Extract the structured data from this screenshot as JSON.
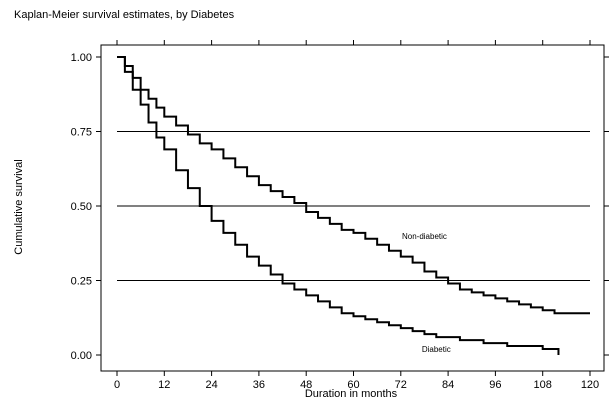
{
  "chart_data": {
    "type": "line",
    "title": "Kaplan-Meier survival estimates, by Diabetes",
    "xlabel": "Duration in months",
    "ylabel": "Cumulative survival",
    "xlim": [
      0,
      120
    ],
    "ylim": [
      0,
      1
    ],
    "x_ticks": [
      0,
      12,
      24,
      36,
      48,
      60,
      72,
      84,
      96,
      108,
      120
    ],
    "y_ticks": [
      "1.00",
      "0.75",
      "0.50",
      "0.25",
      "0.00"
    ],
    "y_tick_values": [
      1.0,
      0.75,
      0.5,
      0.25,
      0.0
    ],
    "grid": {
      "horizontal_lines_at": [
        0.25,
        0.5,
        0.75
      ]
    },
    "series": [
      {
        "name": "Non-diabetic",
        "color": "#000000",
        "step": true,
        "x": [
          0,
          2,
          4,
          6,
          8,
          10,
          12,
          15,
          18,
          21,
          24,
          27,
          30,
          33,
          36,
          39,
          42,
          45,
          48,
          51,
          54,
          57,
          60,
          63,
          66,
          69,
          72,
          75,
          78,
          81,
          84,
          87,
          90,
          93,
          96,
          99,
          102,
          105,
          108,
          111,
          114,
          117,
          120
        ],
        "y": [
          1.0,
          0.97,
          0.93,
          0.89,
          0.86,
          0.83,
          0.8,
          0.77,
          0.74,
          0.71,
          0.69,
          0.66,
          0.63,
          0.6,
          0.57,
          0.55,
          0.53,
          0.51,
          0.48,
          0.46,
          0.44,
          0.42,
          0.41,
          0.39,
          0.37,
          0.35,
          0.33,
          0.31,
          0.28,
          0.26,
          0.24,
          0.22,
          0.21,
          0.2,
          0.19,
          0.18,
          0.17,
          0.16,
          0.15,
          0.14,
          0.14,
          0.14,
          0.14
        ]
      },
      {
        "name": "Diabetic",
        "color": "#000000",
        "step": true,
        "x": [
          0,
          2,
          4,
          6,
          8,
          10,
          12,
          15,
          18,
          21,
          24,
          27,
          30,
          33,
          36,
          39,
          42,
          45,
          48,
          51,
          54,
          57,
          60,
          63,
          66,
          69,
          72,
          75,
          78,
          81,
          84,
          87,
          90,
          93,
          96,
          99,
          102,
          105,
          108,
          112
        ],
        "y": [
          1.0,
          0.95,
          0.89,
          0.84,
          0.78,
          0.73,
          0.69,
          0.62,
          0.56,
          0.5,
          0.45,
          0.41,
          0.37,
          0.33,
          0.3,
          0.27,
          0.24,
          0.22,
          0.2,
          0.18,
          0.16,
          0.14,
          0.13,
          0.12,
          0.11,
          0.1,
          0.09,
          0.08,
          0.07,
          0.06,
          0.06,
          0.05,
          0.05,
          0.04,
          0.04,
          0.03,
          0.03,
          0.03,
          0.02,
          0.0
        ]
      }
    ],
    "annotations": [
      {
        "text": "Non-diabetic",
        "x": 78,
        "y": 0.39
      },
      {
        "text": "Diabetic",
        "x": 81,
        "y": 0.01
      }
    ]
  }
}
